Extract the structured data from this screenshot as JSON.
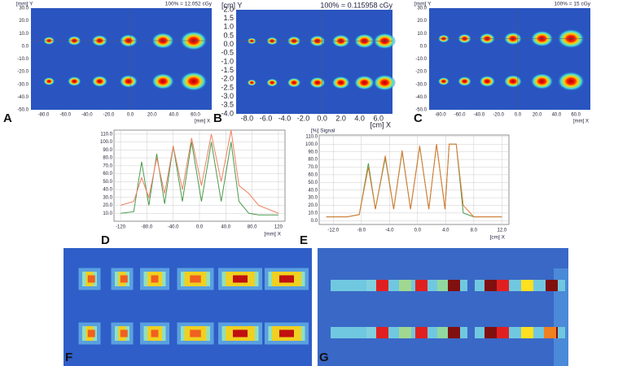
{
  "panels": {
    "A": {
      "label": "A",
      "y_axis": "[mm] Y",
      "dose": "100% = 12.052 cGy",
      "x_axis": "[mm] X",
      "yticks": [
        "30.0",
        "20.0",
        "10.0",
        "0.0",
        "-10.0",
        "-20.0",
        "-30.0",
        "-40.0",
        "-50.0"
      ],
      "xticks": [
        "-80.0",
        "-60.0",
        "-40.0",
        "-20.0",
        "0.0",
        "20.0",
        "40.0",
        "60.0"
      ]
    },
    "B": {
      "label": "B",
      "y_axis": "[cm] Y",
      "dose": "100% = 0.115958 cGy",
      "x_axis": "[cm] X",
      "yticks": [
        "2.0",
        "1.5",
        "1.0",
        "0.5",
        "0.0",
        "-0.5",
        "-1.0",
        "-1.5",
        "-2.0",
        "-2.5",
        "-3.0",
        "-3.5",
        "-4.0"
      ],
      "xticks": [
        "-8.0",
        "-6.0",
        "-4.0",
        "-2.0",
        "0.0",
        "2.0",
        "4.0",
        "6.0"
      ]
    },
    "C": {
      "label": "C",
      "y_axis": "[mm] Y",
      "dose": "100% = 15 cGy",
      "x_axis": "[mm] X",
      "yticks": [
        "30.0",
        "20.0",
        "10.0",
        "0.0",
        "-10.0",
        "-20.0",
        "-30.0",
        "-40.0",
        "-50.0"
      ],
      "xticks": [
        "-80.0",
        "-60.0",
        "-40.0",
        "-20.0",
        "0.0",
        "20.0",
        "40.0",
        "60.0"
      ]
    },
    "F": {
      "label": "F"
    },
    "G": {
      "label": "G"
    }
  },
  "chart_data": [
    {
      "type": "line",
      "label": "D",
      "x_axis": "[mm] X",
      "x": [
        -120,
        -100,
        -88,
        -77,
        -65,
        -53,
        -40,
        -26,
        -12,
        3,
        18,
        33,
        48,
        60,
        75,
        90,
        105,
        120
      ],
      "series": [
        {
          "color": "#4a9a4a",
          "values": [
            10,
            12,
            75,
            20,
            85,
            22,
            95,
            25,
            100,
            25,
            100,
            25,
            100,
            25,
            10,
            8,
            8,
            8
          ]
        },
        {
          "color": "#f08060",
          "values": [
            20,
            25,
            55,
            30,
            80,
            35,
            95,
            40,
            105,
            45,
            110,
            50,
            115,
            45,
            35,
            20,
            15,
            10
          ]
        }
      ],
      "xlim": [
        -130,
        130
      ],
      "ylim": [
        0,
        115
      ],
      "xticks": [
        {
          "value": -120,
          "label": "-120"
        },
        {
          "value": -80,
          "label": "-80.0"
        },
        {
          "value": -40,
          "label": "-40.0"
        },
        {
          "value": 0,
          "label": "0.0"
        },
        {
          "value": 40,
          "label": "40.0"
        },
        {
          "value": 80,
          "label": "80.0"
        },
        120
      ],
      "yticks": [
        {
          "value": 10,
          "label": "10.0"
        },
        {
          "value": 20,
          "label": "20.0"
        },
        {
          "value": 30,
          "label": "30.0"
        },
        {
          "value": 40,
          "label": "40.0"
        },
        {
          "value": 50,
          "label": "50.0"
        },
        {
          "value": 60,
          "label": "60.0"
        },
        {
          "value": 70,
          "label": "70.0"
        },
        {
          "value": 80,
          "label": "80.0"
        },
        {
          "value": 90,
          "label": "90.0"
        },
        {
          "value": 100,
          "label": "100.0"
        },
        {
          "value": 110,
          "label": "110.0"
        }
      ],
      "grid": true
    },
    {
      "type": "line",
      "label": "E",
      "x_axis": "[cm] X",
      "y_axis": "[%] Signal",
      "x": [
        -13,
        -10,
        -8.3,
        -7,
        -6,
        -4.6,
        -3.4,
        -2.2,
        -1,
        0.3,
        1.6,
        2.7,
        3.9,
        4.5,
        5.5,
        6.5,
        8,
        10,
        12
      ],
      "series": [
        {
          "color": "#4a9a4a",
          "values": [
            5,
            5,
            8,
            75,
            15,
            82,
            15,
            90,
            15,
            97,
            15,
            100,
            15,
            100,
            100,
            10,
            5,
            5,
            5
          ]
        },
        {
          "color": "#e07a30",
          "values": [
            5,
            5,
            8,
            70,
            15,
            85,
            15,
            92,
            15,
            98,
            15,
            100,
            15,
            100,
            100,
            20,
            5,
            5,
            5
          ]
        }
      ],
      "xlim": [
        -14,
        13
      ],
      "ylim": [
        -5,
        112
      ],
      "xticks": [
        {
          "value": -12,
          "label": "-12.0"
        },
        {
          "value": -8,
          "label": "-8.0"
        },
        {
          "value": -4,
          "label": "-4.0"
        },
        {
          "value": 0,
          "label": "0.0"
        },
        {
          "value": 4,
          "label": "4.0"
        },
        {
          "value": 8,
          "label": "8.0"
        },
        {
          "value": 12,
          "label": "12.0"
        }
      ],
      "yticks": [
        {
          "value": 0,
          "label": "0.0"
        },
        {
          "value": 10,
          "label": "10.0"
        },
        {
          "value": 20,
          "label": "20.0"
        },
        {
          "value": 30,
          "label": "30.0"
        },
        {
          "value": 40,
          "label": "40.0"
        },
        {
          "value": 50,
          "label": "50.0"
        },
        {
          "value": 60,
          "label": "60.0"
        },
        {
          "value": 70,
          "label": "70.0"
        },
        {
          "value": 80,
          "label": "80.0"
        },
        {
          "value": 90,
          "label": "90.0"
        },
        {
          "value": 100,
          "label": "100.0"
        },
        {
          "value": 110,
          "label": "110.0"
        }
      ],
      "grid": true
    }
  ]
}
